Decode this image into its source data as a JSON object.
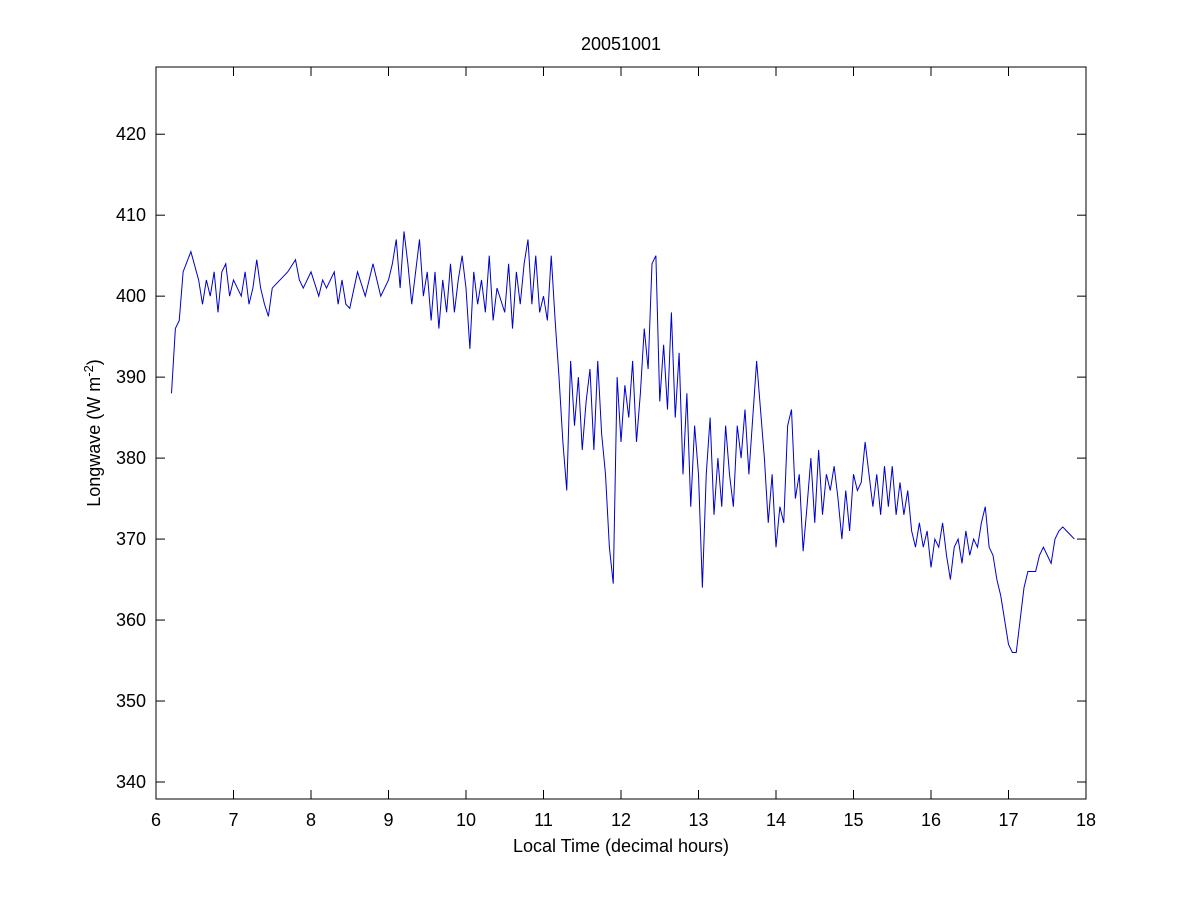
{
  "chart_data": {
    "type": "line",
    "title": "20051001",
    "xlabel": "Local Time (decimal hours)",
    "ylabel": {
      "text": "Longwave (W m",
      "superscript": "-2",
      "suffix": ")"
    },
    "xlim": [
      6,
      18
    ],
    "ylim": [
      337.9,
      428.3
    ],
    "xticks": [
      6,
      7,
      8,
      9,
      10,
      11,
      12,
      13,
      14,
      15,
      16,
      17,
      18
    ],
    "yticks": [
      340,
      350,
      360,
      370,
      380,
      390,
      400,
      410,
      420
    ],
    "grid": false,
    "x": [
      6.2,
      6.25,
      6.3,
      6.35,
      6.45,
      6.55,
      6.6,
      6.65,
      6.7,
      6.75,
      6.8,
      6.85,
      6.9,
      6.95,
      7.0,
      7.05,
      7.1,
      7.15,
      7.2,
      7.25,
      7.3,
      7.35,
      7.4,
      7.45,
      7.5,
      7.6,
      7.7,
      7.8,
      7.85,
      7.9,
      8.0,
      8.1,
      8.15,
      8.2,
      8.3,
      8.35,
      8.4,
      8.45,
      8.5,
      8.6,
      8.7,
      8.8,
      8.9,
      9.0,
      9.05,
      9.1,
      9.15,
      9.2,
      9.25,
      9.3,
      9.35,
      9.4,
      9.45,
      9.5,
      9.55,
      9.6,
      9.65,
      9.7,
      9.75,
      9.8,
      9.85,
      9.9,
      9.95,
      10.0,
      10.05,
      10.1,
      10.15,
      10.2,
      10.25,
      10.3,
      10.35,
      10.4,
      10.5,
      10.55,
      10.6,
      10.65,
      10.7,
      10.75,
      10.8,
      10.85,
      10.9,
      10.95,
      11.0,
      11.05,
      11.1,
      11.15,
      11.2,
      11.25,
      11.3,
      11.35,
      11.4,
      11.45,
      11.5,
      11.55,
      11.6,
      11.65,
      11.7,
      11.75,
      11.8,
      11.85,
      11.9,
      11.95,
      12.0,
      12.05,
      12.1,
      12.15,
      12.2,
      12.25,
      12.3,
      12.35,
      12.4,
      12.45,
      12.5,
      12.55,
      12.6,
      12.65,
      12.7,
      12.75,
      12.8,
      12.85,
      12.9,
      12.95,
      13.0,
      13.05,
      13.1,
      13.15,
      13.2,
      13.25,
      13.3,
      13.35,
      13.4,
      13.45,
      13.5,
      13.55,
      13.6,
      13.65,
      13.7,
      13.75,
      13.8,
      13.85,
      13.9,
      13.95,
      14.0,
      14.05,
      14.1,
      14.15,
      14.2,
      14.25,
      14.3,
      14.35,
      14.4,
      14.45,
      14.5,
      14.55,
      14.6,
      14.65,
      14.7,
      14.75,
      14.8,
      14.85,
      14.9,
      14.95,
      15.0,
      15.05,
      15.1,
      15.15,
      15.2,
      15.25,
      15.3,
      15.35,
      15.4,
      15.45,
      15.5,
      15.55,
      15.6,
      15.65,
      15.7,
      15.75,
      15.8,
      15.85,
      15.9,
      15.95,
      16.0,
      16.05,
      16.1,
      16.15,
      16.2,
      16.25,
      16.3,
      16.35,
      16.4,
      16.45,
      16.5,
      16.55,
      16.6,
      16.65,
      16.7,
      16.75,
      16.8,
      16.85,
      16.9,
      16.95,
      17.0,
      17.05,
      17.1,
      17.15,
      17.2,
      17.25,
      17.3,
      17.35,
      17.4,
      17.45,
      17.5,
      17.55,
      17.6,
      17.65,
      17.7,
      17.75,
      17.8,
      17.85
    ],
    "series": [
      {
        "name": "Longwave",
        "color": "#0000cc",
        "values": [
          388,
          396,
          397,
          403,
          405.5,
          402,
          399,
          402,
          400,
          403,
          398,
          403,
          404,
          400,
          402,
          401,
          400,
          403,
          399,
          401,
          404.5,
          401,
          399,
          397.5,
          401,
          402,
          403,
          404.5,
          402,
          401,
          403,
          400,
          402,
          401,
          403,
          399,
          402,
          399,
          398.5,
          403,
          400,
          404,
          400,
          402,
          404,
          407,
          401,
          408,
          404,
          399,
          403,
          407,
          400,
          403,
          397,
          403,
          396,
          402,
          398,
          404,
          398,
          402,
          405,
          401,
          393.5,
          403,
          399,
          402,
          398,
          405,
          397,
          401,
          398,
          404,
          396,
          403,
          399,
          404,
          407,
          399,
          405,
          398,
          400,
          397,
          405,
          397,
          390,
          382,
          376,
          392,
          384,
          390,
          381,
          387,
          391,
          381,
          392,
          383,
          378,
          369,
          364.5,
          390,
          382,
          389,
          385,
          392,
          382,
          388,
          396,
          391,
          404,
          405,
          387,
          394,
          386,
          398,
          385,
          393,
          378,
          388,
          374,
          384,
          378,
          364,
          378,
          385,
          373,
          380,
          374,
          384,
          378,
          374,
          384,
          380,
          386,
          378,
          385,
          392,
          386,
          380,
          372,
          378,
          369,
          374,
          372,
          384,
          386,
          375,
          378,
          368.5,
          374,
          380,
          372,
          381,
          373,
          378,
          376,
          379,
          375,
          370,
          376,
          371,
          378,
          376,
          377,
          382,
          378,
          374,
          378,
          373,
          379,
          374,
          379,
          373,
          377,
          373,
          376,
          371,
          369,
          372,
          369,
          371,
          366.5,
          370,
          369,
          372,
          368,
          365,
          369,
          370,
          367,
          371,
          368,
          370,
          369,
          372,
          374,
          369,
          368,
          365,
          363,
          360,
          357,
          356,
          356,
          360,
          364,
          366,
          366,
          366,
          368,
          369,
          368,
          367,
          370,
          371,
          371.5,
          371,
          370.5,
          370
        ]
      }
    ]
  }
}
